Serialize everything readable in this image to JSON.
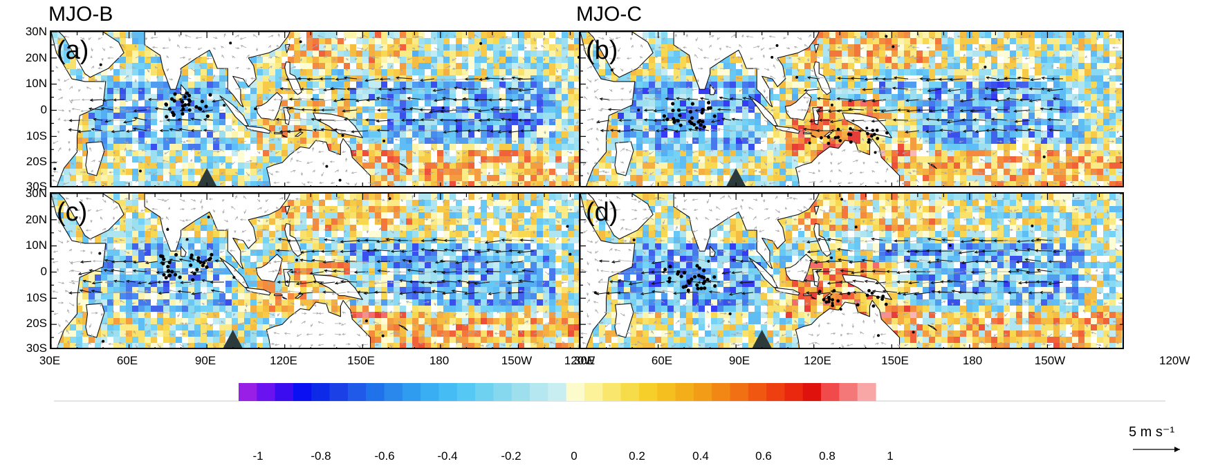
{
  "titles": {
    "left": "MJO-B",
    "right": "MJO-C"
  },
  "panels": [
    {
      "label": "(a)",
      "tri_lon": 90
    },
    {
      "label": "(b)",
      "tri_lon": 90
    },
    {
      "label": "(c)",
      "tri_lon": 100
    },
    {
      "label": "(d)",
      "tri_lon": 100
    }
  ],
  "lat_ticks": [
    "30N",
    "20N",
    "10N",
    "0",
    "10S",
    "20S",
    "30S"
  ],
  "lon_ticks": [
    "30E",
    "60E",
    "90E",
    "120E",
    "150E",
    "180",
    "150W",
    "120W"
  ],
  "colorbar": {
    "ticks": [
      "-1",
      "-0.8",
      "-0.6",
      "-0.4",
      "-0.2",
      "0",
      "0.2",
      "0.4",
      "0.6",
      "0.8",
      "1"
    ],
    "colors": [
      "#9a1fe6",
      "#6a12f0",
      "#3b0cf0",
      "#0a10f2",
      "#0d2ae8",
      "#1a40e6",
      "#1f5be8",
      "#2072ea",
      "#2a88ec",
      "#2f9cf0",
      "#3aaef2",
      "#45bcf4",
      "#55c8f4",
      "#6ed1f0",
      "#86d8ee",
      "#9edfee",
      "#b5e7f0",
      "#c8eef2",
      "#fcfbcc",
      "#fbf29a",
      "#f9e76d",
      "#f7dc4a",
      "#f6cf2a",
      "#f5bf20",
      "#f4ae1a",
      "#f39c18",
      "#f28716",
      "#f27014",
      "#f05812",
      "#ee3f10",
      "#ea280f",
      "#e0120e",
      "#f04a4a",
      "#f57878",
      "#f8a6a6"
    ]
  },
  "reference_vector": {
    "label": "5 m s⁻¹"
  }
}
